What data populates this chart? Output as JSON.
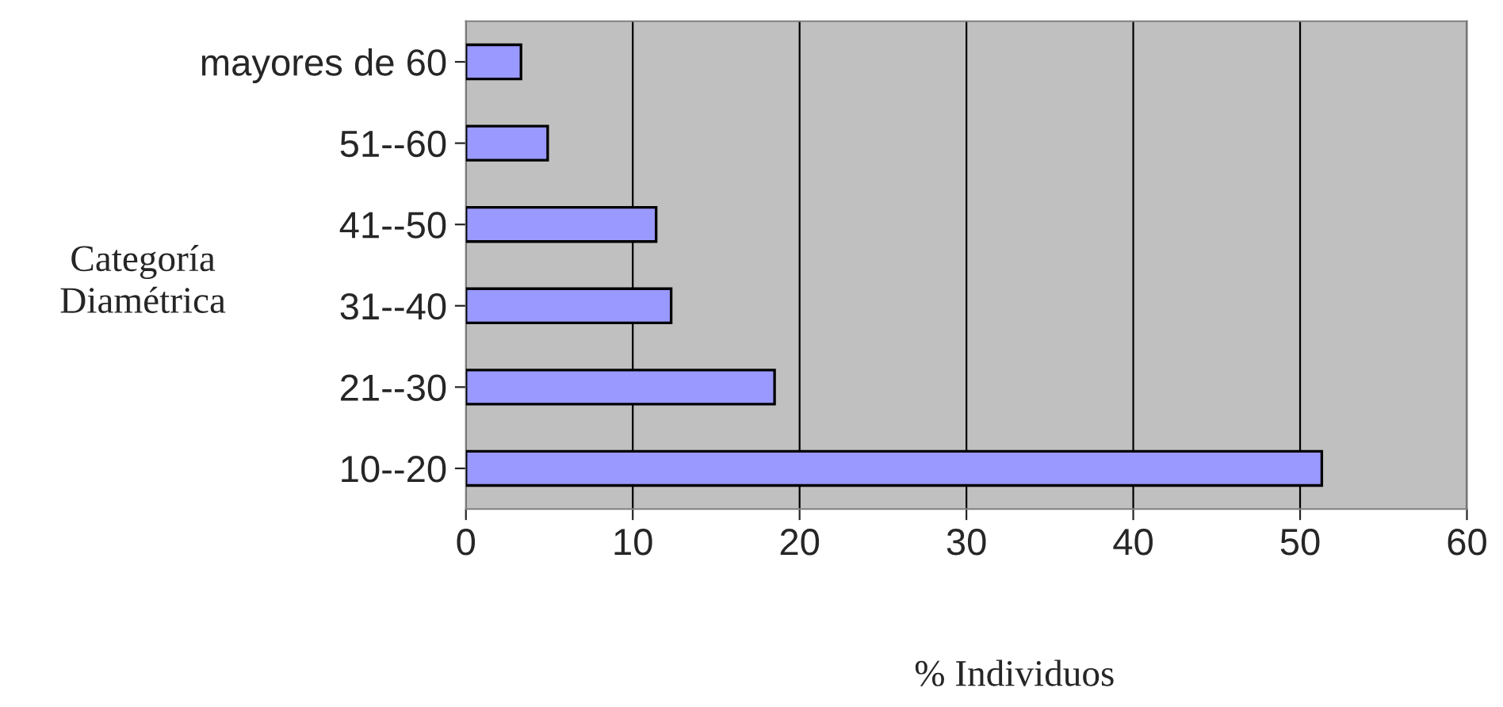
{
  "chart_data": {
    "type": "bar",
    "orientation": "horizontal",
    "categories": [
      "mayores de 60",
      "51--60",
      "41--50",
      "31--40",
      "21--30",
      "10--20"
    ],
    "values": [
      3.3,
      4.9,
      11.4,
      12.3,
      18.5,
      51.3
    ],
    "color": "#9999ff",
    "xlim": [
      0,
      60
    ],
    "xticks": [
      0,
      10,
      20,
      30,
      40,
      50,
      60
    ],
    "xlabel": "% Individuos",
    "ylabel": "Categoría\nDiamétrica",
    "grid": "x"
  }
}
